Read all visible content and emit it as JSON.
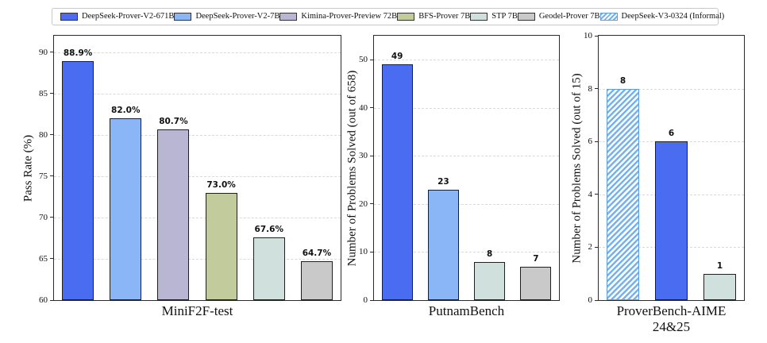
{
  "legend": {
    "items": [
      {
        "label": "DeepSeek-Prover-V2-671B",
        "color": "#4a6cf0",
        "hatch": false
      },
      {
        "label": "DeepSeek-Prover-V2-7B",
        "color": "#8ab5f7",
        "hatch": false
      },
      {
        "label": "Kimina-Prover-Preview 72B",
        "color": "#b8b6d2",
        "hatch": false
      },
      {
        "label": "BFS-Prover 7B",
        "color": "#c2cb9c",
        "hatch": false
      },
      {
        "label": "STP 7B",
        "color": "#cfe0dd",
        "hatch": false
      },
      {
        "label": "Geodel-Prover 7B",
        "color": "#c9c9c9",
        "hatch": false
      },
      {
        "label": "DeepSeek-V3-0324 (Informal)",
        "color": "#ffffff",
        "hatch": true,
        "hatch_color": "#74b2f2",
        "edge_color": "#5b9fe0"
      }
    ]
  },
  "chart_data": [
    {
      "type": "bar",
      "xlabel": "MiniF2F-test",
      "ylabel": "Pass Rate (%)",
      "ylim": [
        60,
        92
      ],
      "yticks": [
        60,
        65,
        70,
        75,
        80,
        85,
        90
      ],
      "grid": "dashed-horizontal",
      "bars": [
        {
          "series": "DeepSeek-Prover-V2-671B",
          "value": 88.9,
          "label": "88.9%",
          "legend_index": 0
        },
        {
          "series": "DeepSeek-Prover-V2-7B",
          "value": 82.0,
          "label": "82.0%",
          "legend_index": 1
        },
        {
          "series": "Kimina-Prover-Preview 72B",
          "value": 80.7,
          "label": "80.7%",
          "legend_index": 2
        },
        {
          "series": "BFS-Prover 7B",
          "value": 73.0,
          "label": "73.0%",
          "legend_index": 3
        },
        {
          "series": "STP 7B",
          "value": 67.6,
          "label": "67.6%",
          "legend_index": 4
        },
        {
          "series": "Geodel-Prover 7B",
          "value": 64.7,
          "label": "64.7%",
          "legend_index": 5
        }
      ]
    },
    {
      "type": "bar",
      "xlabel": "PutnamBench",
      "ylabel": "Number of Problems Solved (out of 658)",
      "ylim": [
        0,
        55
      ],
      "yticks": [
        0,
        10,
        20,
        30,
        40,
        50
      ],
      "grid": "dashed-horizontal",
      "bars": [
        {
          "series": "DeepSeek-Prover-V2-671B",
          "value": 49,
          "label": "49",
          "legend_index": 0
        },
        {
          "series": "DeepSeek-Prover-V2-7B",
          "value": 23,
          "label": "23",
          "legend_index": 1
        },
        {
          "series": "STP 7B",
          "value": 8,
          "label": "8",
          "legend_index": 4
        },
        {
          "series": "Geodel-Prover 7B",
          "value": 7,
          "label": "7",
          "legend_index": 5
        }
      ]
    },
    {
      "type": "bar",
      "xlabel": "ProverBench-AIME 24&25",
      "ylabel": "Number of Problems Solved (out of 15)",
      "ylim": [
        0,
        10
      ],
      "yticks": [
        0,
        2,
        4,
        6,
        8,
        10
      ],
      "grid": "dashed-horizontal",
      "bars": [
        {
          "series": "DeepSeek-V3-0324 (Informal)",
          "value": 8,
          "label": "8",
          "legend_index": 6
        },
        {
          "series": "DeepSeek-Prover-V2-671B",
          "value": 6,
          "label": "6",
          "legend_index": 0
        },
        {
          "series": "STP 7B",
          "value": 1,
          "label": "1",
          "legend_index": 4
        }
      ]
    }
  ]
}
